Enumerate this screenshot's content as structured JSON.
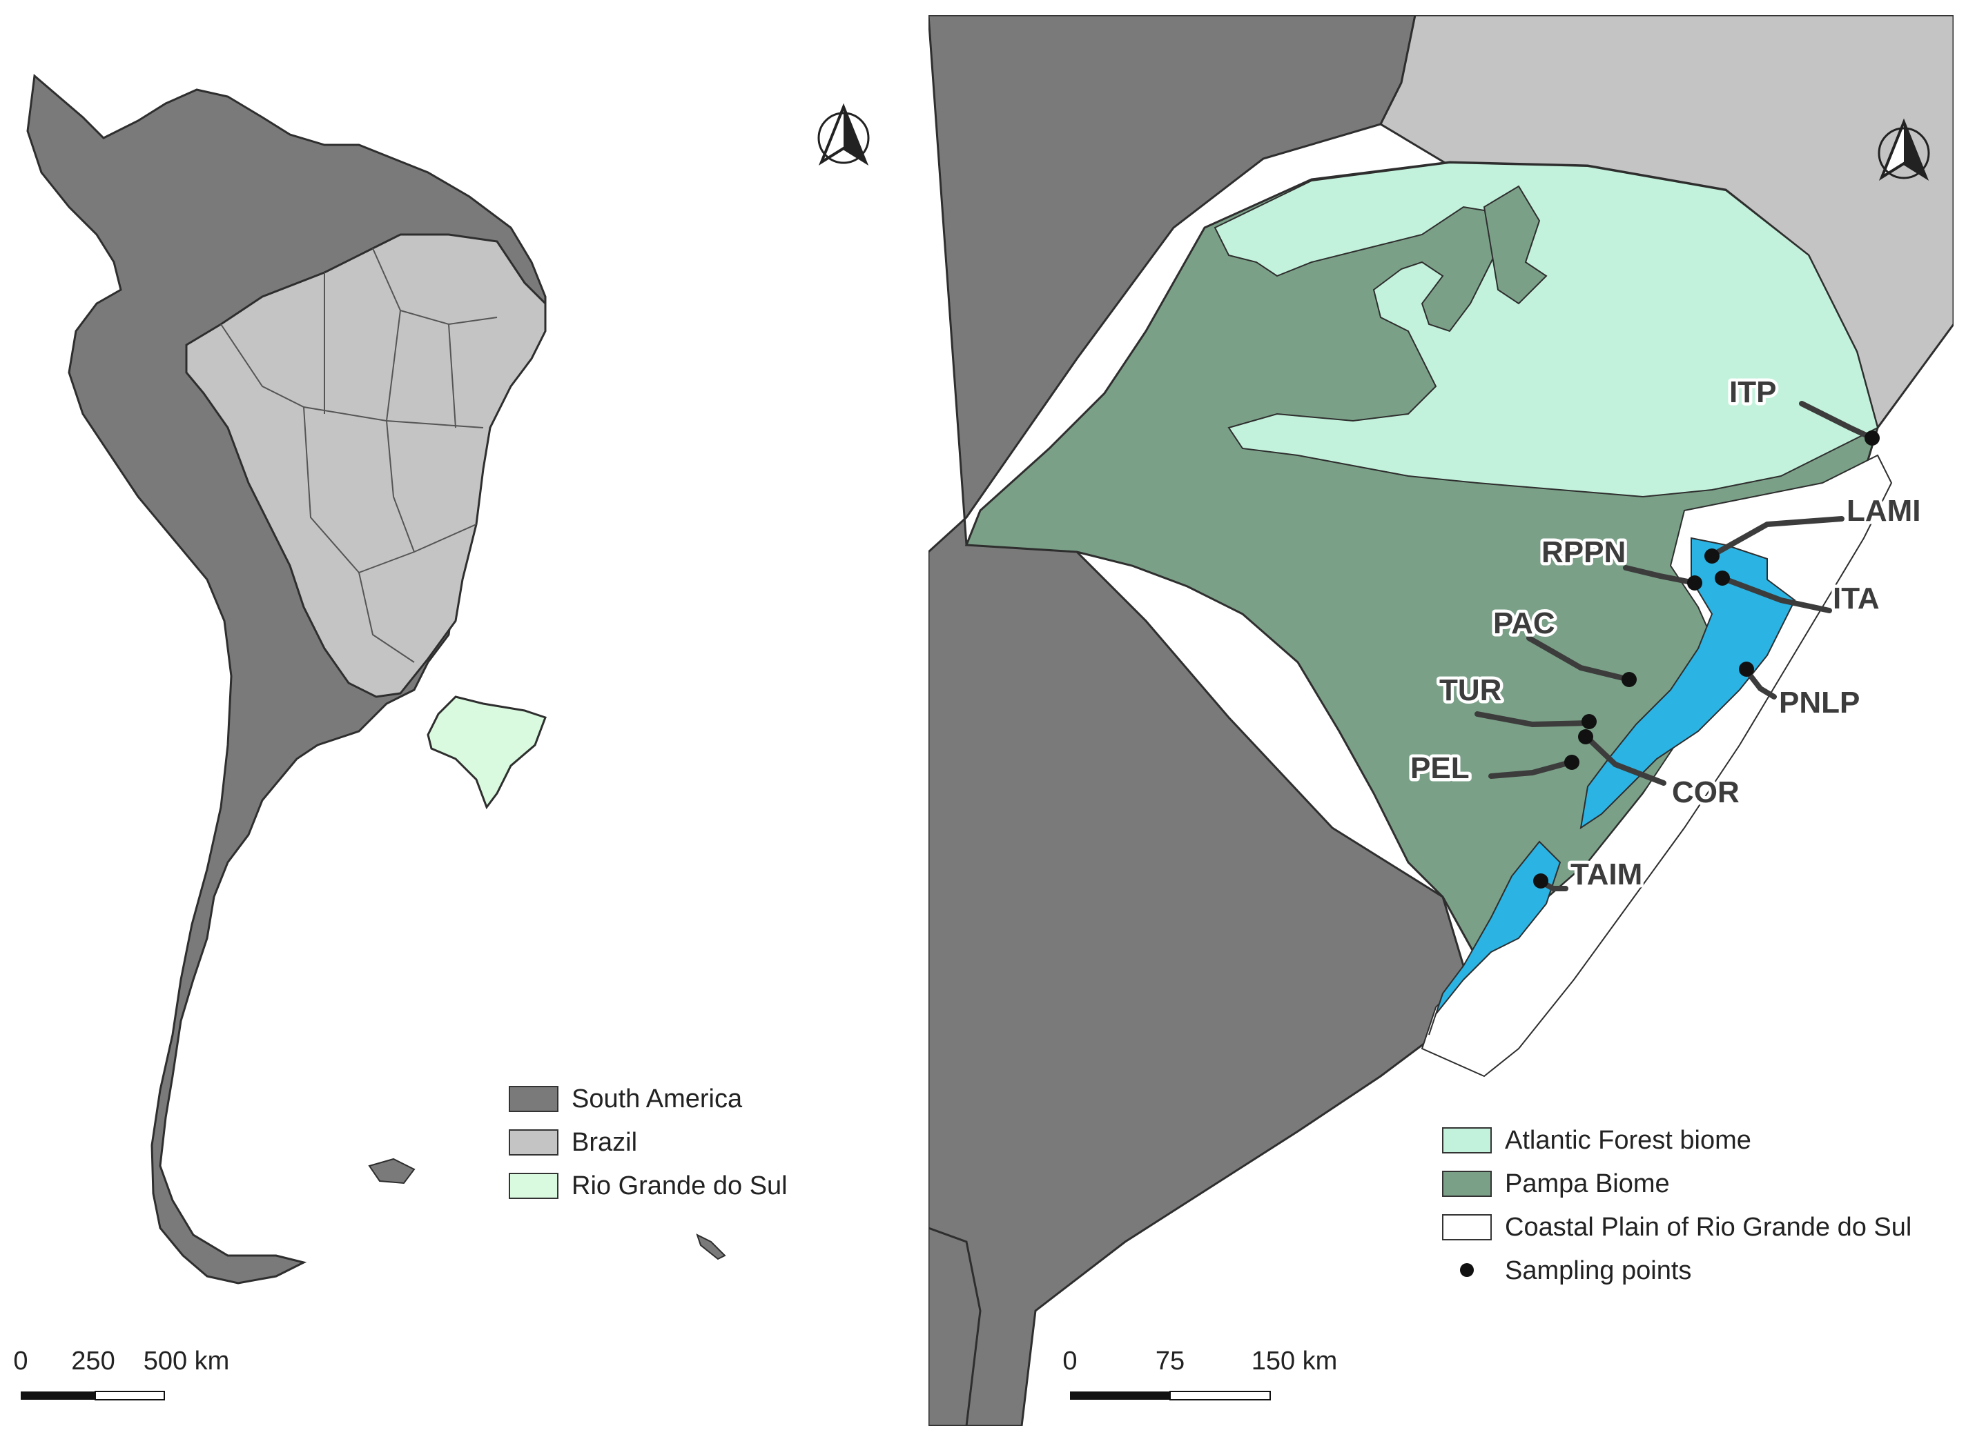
{
  "left_map": {
    "legend": [
      {
        "label": "South America",
        "color": "#7a7a7a"
      },
      {
        "label": "Brazil",
        "color": "#c4c4c4"
      },
      {
        "label": "Rio Grande do Sul",
        "color": "#d9fadf"
      }
    ],
    "scale_bar": {
      "ticks": [
        "0",
        "250",
        "500 km"
      ]
    },
    "north_arrow": "north-arrow-icon"
  },
  "right_map": {
    "legend": [
      {
        "label": "Atlantic Forest biome",
        "color": "#c3f2dc",
        "kind": "box"
      },
      {
        "label": "Pampa Biome",
        "color": "#7ba088",
        "kind": "box"
      },
      {
        "label": "Coastal Plain of Rio Grande do Sul",
        "color": "#ffffff",
        "kind": "box"
      },
      {
        "label": "Sampling points",
        "color": "#111111",
        "kind": "dot"
      }
    ],
    "scale_bar": {
      "ticks": [
        "0",
        "75",
        "150 km"
      ]
    },
    "north_arrow": "north-arrow-icon",
    "sampling_points": [
      {
        "code": "ITP"
      },
      {
        "code": "LAMI"
      },
      {
        "code": "RPPN"
      },
      {
        "code": "ITA"
      },
      {
        "code": "PAC"
      },
      {
        "code": "PNLP"
      },
      {
        "code": "TUR"
      },
      {
        "code": "PEL"
      },
      {
        "code": "COR"
      },
      {
        "code": "TAIM"
      }
    ]
  },
  "colors": {
    "neighbor_country": "#7a7a7a",
    "brazil_other": "#c4c4c4",
    "rgs_highlight": "#d9fadf",
    "atlantic_forest": "#c3f2dc",
    "pampa": "#7ba088",
    "lagoon": "#2bb3e3",
    "coastal_plain": "#ffffff",
    "ocean": "#ffffff",
    "border": "#333333"
  }
}
